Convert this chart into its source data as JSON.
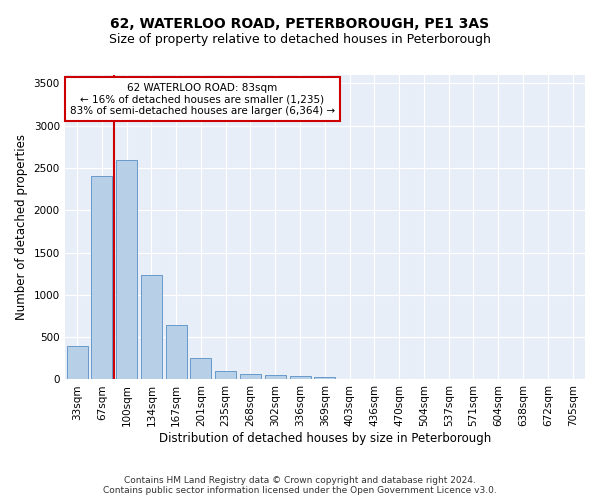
{
  "title": "62, WATERLOO ROAD, PETERBOROUGH, PE1 3AS",
  "subtitle": "Size of property relative to detached houses in Peterborough",
  "xlabel": "Distribution of detached houses by size in Peterborough",
  "ylabel": "Number of detached properties",
  "categories": [
    "33sqm",
    "67sqm",
    "100sqm",
    "134sqm",
    "167sqm",
    "201sqm",
    "235sqm",
    "268sqm",
    "302sqm",
    "336sqm",
    "369sqm",
    "403sqm",
    "436sqm",
    "470sqm",
    "504sqm",
    "537sqm",
    "571sqm",
    "604sqm",
    "638sqm",
    "672sqm",
    "705sqm"
  ],
  "bar_heights": [
    390,
    2410,
    2600,
    1240,
    640,
    255,
    95,
    60,
    55,
    40,
    30,
    0,
    0,
    0,
    0,
    0,
    0,
    0,
    0,
    0,
    0
  ],
  "bar_color": "#b8cfe8",
  "bar_edge_color": "#6699cc",
  "vline_color": "#cc0000",
  "annotation_text": "62 WATERLOO ROAD: 83sqm\n← 16% of detached houses are smaller (1,235)\n83% of semi-detached houses are larger (6,364) →",
  "annotation_box_color": "#ffffff",
  "annotation_box_edge": "#cc0000",
  "ylim": [
    0,
    3600
  ],
  "yticks": [
    0,
    500,
    1000,
    1500,
    2000,
    2500,
    3000,
    3500
  ],
  "background_color": "#e8eef7",
  "grid_color": "#ffffff",
  "fig_background": "#ffffff",
  "footer_line1": "Contains HM Land Registry data © Crown copyright and database right 2024.",
  "footer_line2": "Contains public sector information licensed under the Open Government Licence v3.0.",
  "title_fontsize": 10,
  "subtitle_fontsize": 9,
  "axis_label_fontsize": 8.5,
  "tick_fontsize": 7.5,
  "annotation_fontsize": 7.5,
  "footer_fontsize": 6.5
}
